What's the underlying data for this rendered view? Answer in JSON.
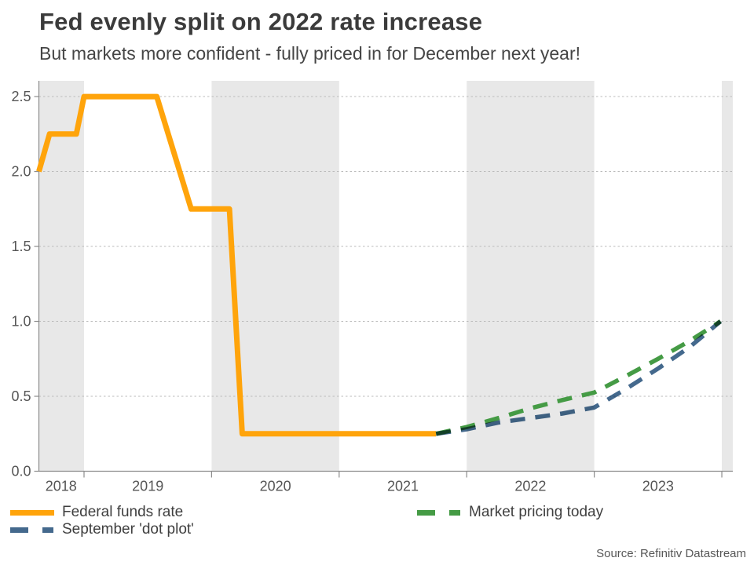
{
  "header": {
    "title": "Fed evenly split on 2022 rate increase",
    "subtitle": "But markets more confident - fully priced in for December next year!"
  },
  "footer": {
    "source": "Source: Refinitiv Datastream"
  },
  "legend": {
    "items": [
      {
        "label": "Federal funds rate",
        "color": "#FFA40B",
        "style": "solid"
      },
      {
        "label": "September 'dot plot'",
        "color": "#44698D",
        "style": "dashed"
      },
      {
        "label": "Market pricing today",
        "color": "#459B45",
        "style": "dashed"
      }
    ]
  },
  "chart_data": {
    "type": "line",
    "title": "Fed evenly split on 2022 rate increase",
    "subtitle": "But markets more confident - fully priced in for December next year!",
    "source": "Source: Refinitiv Datastream",
    "x_axis": {
      "range": [
        2018.646,
        2024.086
      ],
      "tick_positions": [
        2019,
        2020,
        2021,
        2022,
        2023,
        2024
      ],
      "labels": [
        {
          "text": "2018",
          "x": 2018.82
        },
        {
          "text": "2019",
          "x": 2019.5
        },
        {
          "text": "2020",
          "x": 2020.5
        },
        {
          "text": "2021",
          "x": 2021.5
        },
        {
          "text": "2022",
          "x": 2022.5
        },
        {
          "text": "2023",
          "x": 2023.5
        }
      ]
    },
    "y_axis": {
      "range": [
        0,
        2.605
      ],
      "ticks": [
        {
          "text": "0.0",
          "value": 0.0
        },
        {
          "text": "0.5",
          "value": 0.5
        },
        {
          "text": "1.0",
          "value": 1.0
        },
        {
          "text": "1.5",
          "value": 1.5
        },
        {
          "text": "2.0",
          "value": 2.0
        },
        {
          "text": "2.5",
          "value": 2.5
        }
      ],
      "gridline_style": "dotted"
    },
    "shaded_bands": {
      "color": "#E8E8E8",
      "ranges": [
        [
          2018.646,
          2019
        ],
        [
          2020,
          2021
        ],
        [
          2022,
          2023
        ],
        [
          2024,
          2024.086
        ]
      ]
    },
    "series": [
      {
        "name": "Federal funds rate",
        "color": "#FFA40B",
        "style": "solid",
        "width": 7,
        "points": [
          [
            2018.646,
            2.0
          ],
          [
            2018.73,
            2.25
          ],
          [
            2018.94,
            2.25
          ],
          [
            2019.0,
            2.5
          ],
          [
            2019.57,
            2.5
          ],
          [
            2019.84,
            1.75
          ],
          [
            2020.14,
            1.75
          ],
          [
            2020.24,
            0.25
          ],
          [
            2021.76,
            0.25
          ]
        ]
      },
      {
        "name": "Market pricing today",
        "color": "#459B45",
        "style": "dashed",
        "width": 5.5,
        "points": [
          [
            2021.76,
            0.25
          ],
          [
            2022.0,
            0.295
          ],
          [
            2022.25,
            0.355
          ],
          [
            2022.5,
            0.42
          ],
          [
            2022.75,
            0.475
          ],
          [
            2023.0,
            0.525
          ],
          [
            2023.25,
            0.635
          ],
          [
            2023.5,
            0.75
          ],
          [
            2023.75,
            0.87
          ],
          [
            2023.99,
            1.0
          ]
        ]
      },
      {
        "name": "September 'dot plot'",
        "color": "#44698D",
        "style": "dashed",
        "width": 5.5,
        "blend": "multiply",
        "points": [
          [
            2021.76,
            0.25
          ],
          [
            2022.0,
            0.28
          ],
          [
            2022.25,
            0.325
          ],
          [
            2022.5,
            0.355
          ],
          [
            2022.75,
            0.385
          ],
          [
            2023.0,
            0.425
          ],
          [
            2023.25,
            0.55
          ],
          [
            2023.5,
            0.685
          ],
          [
            2023.75,
            0.83
          ],
          [
            2023.99,
            1.0
          ]
        ]
      }
    ]
  }
}
